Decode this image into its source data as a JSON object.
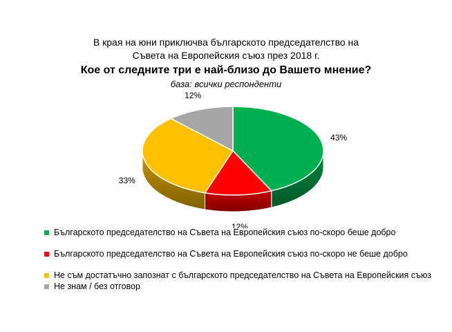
{
  "header": {
    "intro_line1": "В края на юни приключва българското председателство на",
    "intro_line2": "Съвета на Европейския съюз през 2018 г.",
    "question": "Кое от следните три е най-близо до Вашето мнение?",
    "base": "база: всички респонденти"
  },
  "chart_data": {
    "type": "pie",
    "style": "3d",
    "start": "12 o'clock",
    "direction": "clockwise",
    "slices": [
      {
        "label": "Българското председателство на Съвета на Евpопейския съюз по-скоро беше добро",
        "value": 43,
        "value_label": "43%",
        "color": "#00b050"
      },
      {
        "label": "Българското председателство на Съвета на Европейския съюз по-скоро не беше добро",
        "value": 12,
        "value_label": "12%",
        "color": "#ff0000"
      },
      {
        "label": "Не съм достатъчно запознат с българското председателство на Съвета на Европейския съюз",
        "value": 33,
        "value_label": "33%",
        "color": "#ffc000"
      },
      {
        "label": "Не знам / без отговор",
        "value": 12,
        "value_label": "12%",
        "color": "#a6a6a6"
      }
    ],
    "legend_position": "bottom"
  }
}
